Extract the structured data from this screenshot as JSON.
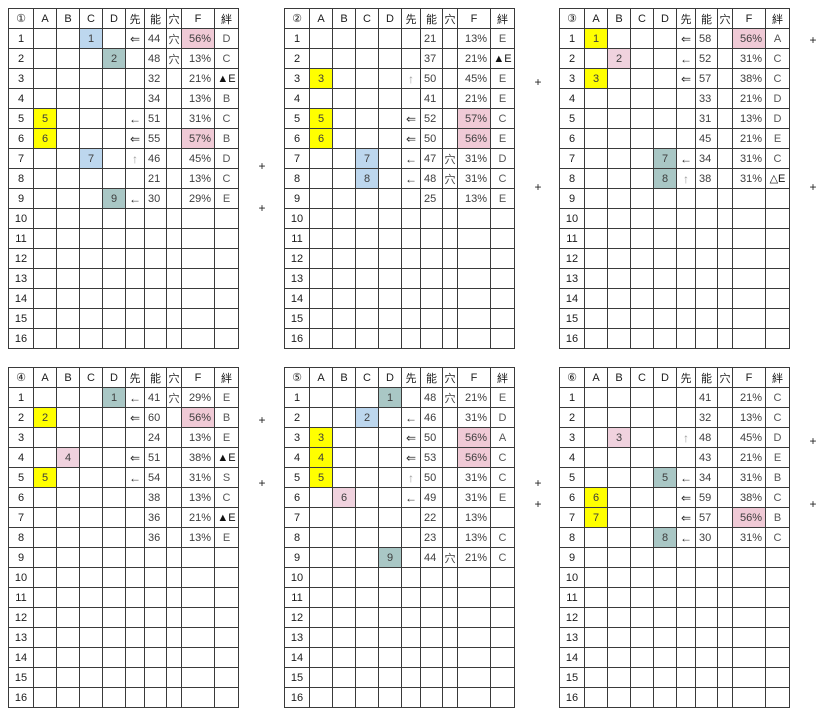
{
  "columns": [
    "A",
    "B",
    "C",
    "D",
    "先",
    "能",
    "穴",
    "F",
    "絆"
  ],
  "row_count": 16,
  "plus_label": "+",
  "colors": {
    "mark_A": "#ffff00",
    "mark_B": "#f0d2de",
    "mark_C": "#bdd7ee",
    "mark_D": "#a9c7c5",
    "f_highlight": "#f0cad6"
  },
  "tables": [
    {
      "id": "①",
      "plus_rows": [
        7,
        9
      ],
      "rows": [
        {
          "n": 1,
          "mark": {
            "col": "C",
            "val": "1"
          },
          "sen": "⇐",
          "nou": "44",
          "ana": "穴",
          "f": "56%",
          "f_hl": true,
          "kizuna": "D"
        },
        {
          "n": 2,
          "mark": {
            "col": "D",
            "val": "2"
          },
          "sen": "",
          "nou": "48",
          "ana": "穴",
          "f": "13%",
          "f_hl": false,
          "kizuna": "C"
        },
        {
          "n": 3,
          "sen": "",
          "nou": "32",
          "ana": "",
          "f": "21%",
          "f_hl": false,
          "kizuna": "▲E"
        },
        {
          "n": 4,
          "sen": "",
          "nou": "34",
          "ana": "",
          "f": "13%",
          "f_hl": false,
          "kizuna": "B"
        },
        {
          "n": 5,
          "mark": {
            "col": "A",
            "val": "5"
          },
          "sen": "←",
          "nou": "51",
          "ana": "",
          "f": "31%",
          "f_hl": false,
          "kizuna": "C"
        },
        {
          "n": 6,
          "mark": {
            "col": "A",
            "val": "6"
          },
          "sen": "⇐",
          "nou": "55",
          "ana": "",
          "f": "57%",
          "f_hl": true,
          "kizuna": "B"
        },
        {
          "n": 7,
          "mark": {
            "col": "C",
            "val": "7"
          },
          "sen": "↑",
          "nou": "46",
          "ana": "",
          "f": "45%",
          "f_hl": false,
          "kizuna": "D"
        },
        {
          "n": 8,
          "sen": "",
          "nou": "21",
          "ana": "",
          "f": "13%",
          "f_hl": false,
          "kizuna": "C"
        },
        {
          "n": 9,
          "mark": {
            "col": "D",
            "val": "9"
          },
          "sen": "←",
          "nou": "30",
          "ana": "",
          "f": "29%",
          "f_hl": false,
          "kizuna": "E"
        }
      ]
    },
    {
      "id": "②",
      "plus_rows": [
        3,
        8
      ],
      "rows": [
        {
          "n": 1,
          "sen": "",
          "nou": "21",
          "ana": "",
          "f": "13%",
          "f_hl": false,
          "kizuna": "E"
        },
        {
          "n": 2,
          "sen": "",
          "nou": "37",
          "ana": "",
          "f": "21%",
          "f_hl": false,
          "kizuna": "▲E"
        },
        {
          "n": 3,
          "mark": {
            "col": "A",
            "val": "3"
          },
          "sen": "↑",
          "nou": "50",
          "ana": "",
          "f": "45%",
          "f_hl": false,
          "kizuna": "E"
        },
        {
          "n": 4,
          "sen": "",
          "nou": "41",
          "ana": "",
          "f": "21%",
          "f_hl": false,
          "kizuna": "E"
        },
        {
          "n": 5,
          "mark": {
            "col": "A",
            "val": "5"
          },
          "sen": "⇐",
          "nou": "52",
          "ana": "",
          "f": "57%",
          "f_hl": true,
          "kizuna": "C"
        },
        {
          "n": 6,
          "mark": {
            "col": "A",
            "val": "6"
          },
          "sen": "⇐",
          "nou": "50",
          "ana": "",
          "f": "56%",
          "f_hl": true,
          "kizuna": "E"
        },
        {
          "n": 7,
          "mark": {
            "col": "C",
            "val": "7"
          },
          "sen": "←",
          "nou": "47",
          "ana": "穴",
          "f": "31%",
          "f_hl": false,
          "kizuna": "D"
        },
        {
          "n": 8,
          "mark": {
            "col": "C",
            "val": "8"
          },
          "sen": "←",
          "nou": "48",
          "ana": "穴",
          "f": "31%",
          "f_hl": false,
          "kizuna": "C"
        },
        {
          "n": 9,
          "sen": "",
          "nou": "25",
          "ana": "",
          "f": "13%",
          "f_hl": false,
          "kizuna": "E"
        }
      ]
    },
    {
      "id": "③",
      "plus_rows": [
        1,
        8
      ],
      "rows": [
        {
          "n": 1,
          "mark": {
            "col": "A",
            "val": "1"
          },
          "sen": "⇐",
          "nou": "58",
          "ana": "",
          "f": "56%",
          "f_hl": true,
          "kizuna": "A"
        },
        {
          "n": 2,
          "mark": {
            "col": "B",
            "val": "2"
          },
          "sen": "←",
          "nou": "52",
          "ana": "",
          "f": "31%",
          "f_hl": false,
          "kizuna": "C"
        },
        {
          "n": 3,
          "mark": {
            "col": "A",
            "val": "3"
          },
          "sen": "⇐",
          "nou": "57",
          "ana": "",
          "f": "38%",
          "f_hl": false,
          "kizuna": "C"
        },
        {
          "n": 4,
          "sen": "",
          "nou": "33",
          "ana": "",
          "f": "21%",
          "f_hl": false,
          "kizuna": "D"
        },
        {
          "n": 5,
          "sen": "",
          "nou": "31",
          "ana": "",
          "f": "13%",
          "f_hl": false,
          "kizuna": "D"
        },
        {
          "n": 6,
          "sen": "",
          "nou": "45",
          "ana": "",
          "f": "21%",
          "f_hl": false,
          "kizuna": "E"
        },
        {
          "n": 7,
          "mark": {
            "col": "D",
            "val": "7"
          },
          "sen": "←",
          "nou": "34",
          "ana": "",
          "f": "31%",
          "f_hl": false,
          "kizuna": "C"
        },
        {
          "n": 8,
          "mark": {
            "col": "D",
            "val": "8"
          },
          "sen": "↑",
          "nou": "38",
          "ana": "",
          "f": "31%",
          "f_hl": false,
          "kizuna": "△E"
        }
      ]
    },
    {
      "id": "④",
      "plus_rows": [
        2,
        5
      ],
      "rows": [
        {
          "n": 1,
          "mark": {
            "col": "D",
            "val": "1"
          },
          "sen": "←",
          "nou": "41",
          "ana": "穴",
          "f": "29%",
          "f_hl": false,
          "kizuna": "E"
        },
        {
          "n": 2,
          "mark": {
            "col": "A",
            "val": "2"
          },
          "sen": "⇐",
          "nou": "60",
          "ana": "",
          "f": "56%",
          "f_hl": true,
          "kizuna": "B"
        },
        {
          "n": 3,
          "sen": "",
          "nou": "24",
          "ana": "",
          "f": "13%",
          "f_hl": false,
          "kizuna": "E"
        },
        {
          "n": 4,
          "mark": {
            "col": "B",
            "val": "4"
          },
          "sen": "⇐",
          "nou": "51",
          "ana": "",
          "f": "38%",
          "f_hl": false,
          "kizuna": "▲E"
        },
        {
          "n": 5,
          "mark": {
            "col": "A",
            "val": "5"
          },
          "sen": "←",
          "nou": "54",
          "ana": "",
          "f": "31%",
          "f_hl": false,
          "kizuna": "S"
        },
        {
          "n": 6,
          "sen": "",
          "nou": "38",
          "ana": "",
          "f": "13%",
          "f_hl": false,
          "kizuna": "C"
        },
        {
          "n": 7,
          "sen": "",
          "nou": "36",
          "ana": "",
          "f": "21%",
          "f_hl": false,
          "kizuna": "▲E"
        },
        {
          "n": 8,
          "sen": "",
          "nou": "36",
          "ana": "",
          "f": "13%",
          "f_hl": false,
          "kizuna": "E"
        }
      ]
    },
    {
      "id": "⑤",
      "plus_rows": [
        5,
        6
      ],
      "rows": [
        {
          "n": 1,
          "mark": {
            "col": "D",
            "val": "1"
          },
          "sen": "",
          "nou": "48",
          "ana": "穴",
          "f": "21%",
          "f_hl": false,
          "kizuna": "E"
        },
        {
          "n": 2,
          "mark": {
            "col": "C",
            "val": "2"
          },
          "sen": "←",
          "nou": "46",
          "ana": "",
          "f": "31%",
          "f_hl": false,
          "kizuna": "D"
        },
        {
          "n": 3,
          "mark": {
            "col": "A",
            "val": "3"
          },
          "sen": "⇐",
          "nou": "50",
          "ana": "",
          "f": "56%",
          "f_hl": true,
          "kizuna": "A"
        },
        {
          "n": 4,
          "mark": {
            "col": "A",
            "val": "4"
          },
          "sen": "⇐",
          "nou": "53",
          "ana": "",
          "f": "56%",
          "f_hl": true,
          "kizuna": "C"
        },
        {
          "n": 5,
          "mark": {
            "col": "A",
            "val": "5"
          },
          "sen": "↑",
          "nou": "50",
          "ana": "",
          "f": "31%",
          "f_hl": false,
          "kizuna": "C"
        },
        {
          "n": 6,
          "mark": {
            "col": "B",
            "val": "6"
          },
          "sen": "←",
          "nou": "49",
          "ana": "",
          "f": "31%",
          "f_hl": false,
          "kizuna": "E"
        },
        {
          "n": 7,
          "sen": "",
          "nou": "22",
          "ana": "",
          "f": "13%",
          "f_hl": false,
          "kizuna": ""
        },
        {
          "n": 8,
          "sen": "",
          "nou": "23",
          "ana": "",
          "f": "13%",
          "f_hl": false,
          "kizuna": "C"
        },
        {
          "n": 9,
          "mark": {
            "col": "D",
            "val": "9"
          },
          "sen": "",
          "nou": "44",
          "ana": "穴",
          "f": "21%",
          "f_hl": false,
          "kizuna": "C"
        }
      ]
    },
    {
      "id": "⑥",
      "plus_rows": [
        3,
        6
      ],
      "rows": [
        {
          "n": 1,
          "sen": "",
          "nou": "41",
          "ana": "",
          "f": "21%",
          "f_hl": false,
          "kizuna": "C"
        },
        {
          "n": 2,
          "sen": "",
          "nou": "32",
          "ana": "",
          "f": "13%",
          "f_hl": false,
          "kizuna": "C"
        },
        {
          "n": 3,
          "mark": {
            "col": "B",
            "val": "3"
          },
          "sen": "↑",
          "nou": "48",
          "ana": "",
          "f": "45%",
          "f_hl": false,
          "kizuna": "D"
        },
        {
          "n": 4,
          "sen": "",
          "nou": "43",
          "ana": "",
          "f": "21%",
          "f_hl": false,
          "kizuna": "E"
        },
        {
          "n": 5,
          "mark": {
            "col": "D",
            "val": "5"
          },
          "sen": "←",
          "nou": "34",
          "ana": "",
          "f": "31%",
          "f_hl": false,
          "kizuna": "B"
        },
        {
          "n": 6,
          "mark": {
            "col": "A",
            "val": "6"
          },
          "sen": "⇐",
          "nou": "59",
          "ana": "",
          "f": "38%",
          "f_hl": false,
          "kizuna": "C"
        },
        {
          "n": 7,
          "mark": {
            "col": "A",
            "val": "7"
          },
          "sen": "⇐",
          "nou": "57",
          "ana": "",
          "f": "56%",
          "f_hl": true,
          "kizuna": "B"
        },
        {
          "n": 8,
          "mark": {
            "col": "D",
            "val": "8"
          },
          "sen": "←",
          "nou": "30",
          "ana": "",
          "f": "31%",
          "f_hl": false,
          "kizuna": "C"
        }
      ]
    }
  ]
}
